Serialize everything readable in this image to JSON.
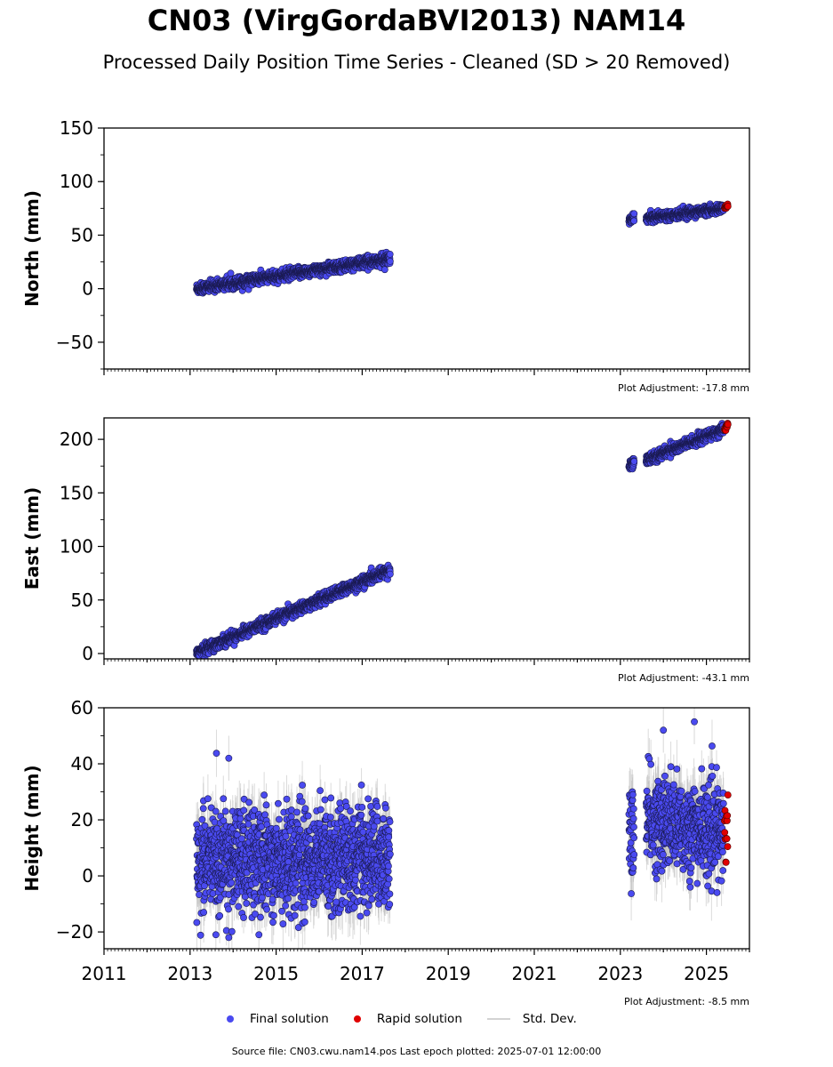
{
  "title": "CN03 (VirgGordaBVI2013) NAM14",
  "subtitle": "Processed Daily Position Time Series - Cleaned (SD > 20 Removed)",
  "footer": "Source file: CN03.cwu.nam14.pos  Last epoch plotted: 2025-07-01 12:00:00",
  "legend": {
    "final": "Final solution",
    "rapid": "Rapid solution",
    "std": "Std. Dev."
  },
  "colors": {
    "final": "#4a4af0",
    "final_edge": "#1a1a50",
    "rapid": "#e00000",
    "std": "#bdbdbd"
  },
  "chart_data": [
    {
      "type": "scatter",
      "ylabel": "North (mm)",
      "ylim": [
        -75,
        150
      ],
      "yticks": [
        -50,
        0,
        50,
        100,
        150
      ],
      "ytick_labels": [
        "−50",
        "0",
        "50",
        "100",
        "150"
      ],
      "xlim": [
        2011.0,
        2026.0
      ],
      "adjustment": "Plot Adjustment: -17.8 mm",
      "segments": [
        {
          "x_start": 2013.15,
          "x_end": 2017.65,
          "y_start": 0,
          "y_end": 28,
          "scatter": 2.5,
          "err": 2
        },
        {
          "x_start": 2023.2,
          "x_end": 2023.32,
          "y_start": 63,
          "y_end": 66,
          "scatter": 2,
          "err": 2
        },
        {
          "x_start": 2023.6,
          "x_end": 2025.4,
          "y_start": 66,
          "y_end": 75,
          "scatter": 2,
          "err": 2
        }
      ],
      "rapid": {
        "x_start": 2025.42,
        "x_end": 2025.5,
        "y_start": 76,
        "y_end": 77,
        "scatter": 1
      }
    },
    {
      "type": "scatter",
      "ylabel": "East (mm)",
      "ylim": [
        -5,
        220
      ],
      "yticks": [
        0,
        50,
        100,
        150,
        200
      ],
      "ytick_labels": [
        "0",
        "50",
        "100",
        "150",
        "200"
      ],
      "xlim": [
        2011.0,
        2026.0
      ],
      "adjustment": "Plot Adjustment: -43.1 mm",
      "segments": [
        {
          "x_start": 2013.15,
          "x_end": 2017.65,
          "y_start": 1,
          "y_end": 78,
          "scatter": 2.5,
          "err": 2
        },
        {
          "x_start": 2023.2,
          "x_end": 2023.32,
          "y_start": 174,
          "y_end": 179,
          "scatter": 2.5,
          "err": 2
        },
        {
          "x_start": 2023.6,
          "x_end": 2025.4,
          "y_start": 181,
          "y_end": 209,
          "scatter": 2.5,
          "err": 2
        }
      ],
      "rapid": {
        "x_start": 2025.42,
        "x_end": 2025.5,
        "y_start": 210,
        "y_end": 213,
        "scatter": 2
      }
    },
    {
      "type": "scatter",
      "ylabel": "Height (mm)",
      "ylim": [
        -26,
        60
      ],
      "yticks": [
        -20,
        0,
        20,
        40,
        60
      ],
      "ytick_labels": [
        "−20",
        "0",
        "20",
        "40",
        "60"
      ],
      "xlim": [
        2011.0,
        2026.0
      ],
      "xticks": [
        2011,
        2013,
        2015,
        2017,
        2019,
        2021,
        2023,
        2025
      ],
      "adjustment": "Plot Adjustment: -8.5 mm",
      "segments": [
        {
          "x_start": 2013.15,
          "x_end": 2017.65,
          "y_start": 5,
          "y_end": 7,
          "scatter": 9,
          "err": 8
        },
        {
          "x_start": 2023.2,
          "x_end": 2023.32,
          "y_start": 14,
          "y_end": 16,
          "scatter": 8,
          "err": 8
        },
        {
          "x_start": 2023.6,
          "x_end": 2025.4,
          "y_start": 20,
          "y_end": 15,
          "scatter": 8,
          "err": 8
        }
      ],
      "rapid": {
        "x_start": 2025.42,
        "x_end": 2025.5,
        "y_start": 14,
        "y_end": 12,
        "scatter": 6
      },
      "outliers": [
        [
          2013.9,
          42
        ],
        [
          2024.0,
          52
        ],
        [
          2024.72,
          55
        ],
        [
          2013.9,
          -22
        ],
        [
          2014.6,
          -21
        ],
        [
          2013.6,
          -21
        ]
      ]
    }
  ]
}
